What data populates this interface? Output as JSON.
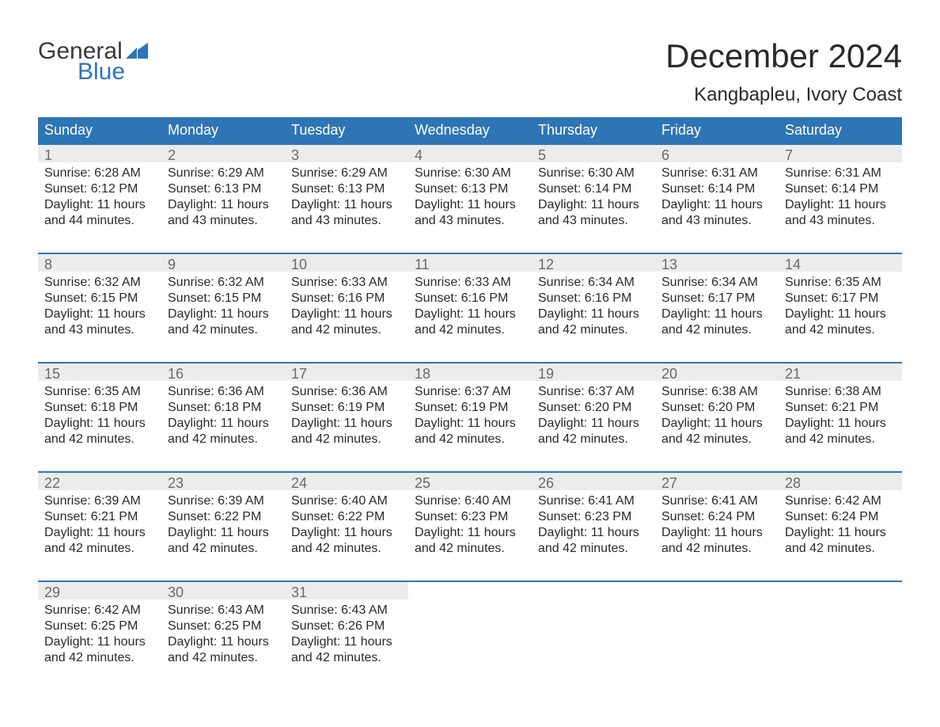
{
  "logo": {
    "general": "General",
    "blue": "Blue",
    "icon_color": "#2e75b6"
  },
  "header": {
    "title": "December 2024",
    "location": "Kangbapleu, Ivory Coast"
  },
  "weekdays": [
    "Sunday",
    "Monday",
    "Tuesday",
    "Wednesday",
    "Thursday",
    "Friday",
    "Saturday"
  ],
  "styling": {
    "header_bg": "#2e75b6",
    "header_fg": "#ffffff",
    "row_separator": "#2e75b6",
    "daynum_bg": "#ececec",
    "daynum_fg": "#6a6a6a",
    "body_fg": "#2a2a2a",
    "page_bg": "#ffffff",
    "title_fontsize": 42,
    "location_fontsize": 24,
    "weekday_fontsize": 18,
    "body_fontsize": 16
  },
  "weeks": [
    [
      {
        "num": "1",
        "sunrise": "Sunrise: 6:28 AM",
        "sunset": "Sunset: 6:12 PM",
        "daylight": "Daylight: 11 hours and 44 minutes."
      },
      {
        "num": "2",
        "sunrise": "Sunrise: 6:29 AM",
        "sunset": "Sunset: 6:13 PM",
        "daylight": "Daylight: 11 hours and 43 minutes."
      },
      {
        "num": "3",
        "sunrise": "Sunrise: 6:29 AM",
        "sunset": "Sunset: 6:13 PM",
        "daylight": "Daylight: 11 hours and 43 minutes."
      },
      {
        "num": "4",
        "sunrise": "Sunrise: 6:30 AM",
        "sunset": "Sunset: 6:13 PM",
        "daylight": "Daylight: 11 hours and 43 minutes."
      },
      {
        "num": "5",
        "sunrise": "Sunrise: 6:30 AM",
        "sunset": "Sunset: 6:14 PM",
        "daylight": "Daylight: 11 hours and 43 minutes."
      },
      {
        "num": "6",
        "sunrise": "Sunrise: 6:31 AM",
        "sunset": "Sunset: 6:14 PM",
        "daylight": "Daylight: 11 hours and 43 minutes."
      },
      {
        "num": "7",
        "sunrise": "Sunrise: 6:31 AM",
        "sunset": "Sunset: 6:14 PM",
        "daylight": "Daylight: 11 hours and 43 minutes."
      }
    ],
    [
      {
        "num": "8",
        "sunrise": "Sunrise: 6:32 AM",
        "sunset": "Sunset: 6:15 PM",
        "daylight": "Daylight: 11 hours and 43 minutes."
      },
      {
        "num": "9",
        "sunrise": "Sunrise: 6:32 AM",
        "sunset": "Sunset: 6:15 PM",
        "daylight": "Daylight: 11 hours and 42 minutes."
      },
      {
        "num": "10",
        "sunrise": "Sunrise: 6:33 AM",
        "sunset": "Sunset: 6:16 PM",
        "daylight": "Daylight: 11 hours and 42 minutes."
      },
      {
        "num": "11",
        "sunrise": "Sunrise: 6:33 AM",
        "sunset": "Sunset: 6:16 PM",
        "daylight": "Daylight: 11 hours and 42 minutes."
      },
      {
        "num": "12",
        "sunrise": "Sunrise: 6:34 AM",
        "sunset": "Sunset: 6:16 PM",
        "daylight": "Daylight: 11 hours and 42 minutes."
      },
      {
        "num": "13",
        "sunrise": "Sunrise: 6:34 AM",
        "sunset": "Sunset: 6:17 PM",
        "daylight": "Daylight: 11 hours and 42 minutes."
      },
      {
        "num": "14",
        "sunrise": "Sunrise: 6:35 AM",
        "sunset": "Sunset: 6:17 PM",
        "daylight": "Daylight: 11 hours and 42 minutes."
      }
    ],
    [
      {
        "num": "15",
        "sunrise": "Sunrise: 6:35 AM",
        "sunset": "Sunset: 6:18 PM",
        "daylight": "Daylight: 11 hours and 42 minutes."
      },
      {
        "num": "16",
        "sunrise": "Sunrise: 6:36 AM",
        "sunset": "Sunset: 6:18 PM",
        "daylight": "Daylight: 11 hours and 42 minutes."
      },
      {
        "num": "17",
        "sunrise": "Sunrise: 6:36 AM",
        "sunset": "Sunset: 6:19 PM",
        "daylight": "Daylight: 11 hours and 42 minutes."
      },
      {
        "num": "18",
        "sunrise": "Sunrise: 6:37 AM",
        "sunset": "Sunset: 6:19 PM",
        "daylight": "Daylight: 11 hours and 42 minutes."
      },
      {
        "num": "19",
        "sunrise": "Sunrise: 6:37 AM",
        "sunset": "Sunset: 6:20 PM",
        "daylight": "Daylight: 11 hours and 42 minutes."
      },
      {
        "num": "20",
        "sunrise": "Sunrise: 6:38 AM",
        "sunset": "Sunset: 6:20 PM",
        "daylight": "Daylight: 11 hours and 42 minutes."
      },
      {
        "num": "21",
        "sunrise": "Sunrise: 6:38 AM",
        "sunset": "Sunset: 6:21 PM",
        "daylight": "Daylight: 11 hours and 42 minutes."
      }
    ],
    [
      {
        "num": "22",
        "sunrise": "Sunrise: 6:39 AM",
        "sunset": "Sunset: 6:21 PM",
        "daylight": "Daylight: 11 hours and 42 minutes."
      },
      {
        "num": "23",
        "sunrise": "Sunrise: 6:39 AM",
        "sunset": "Sunset: 6:22 PM",
        "daylight": "Daylight: 11 hours and 42 minutes."
      },
      {
        "num": "24",
        "sunrise": "Sunrise: 6:40 AM",
        "sunset": "Sunset: 6:22 PM",
        "daylight": "Daylight: 11 hours and 42 minutes."
      },
      {
        "num": "25",
        "sunrise": "Sunrise: 6:40 AM",
        "sunset": "Sunset: 6:23 PM",
        "daylight": "Daylight: 11 hours and 42 minutes."
      },
      {
        "num": "26",
        "sunrise": "Sunrise: 6:41 AM",
        "sunset": "Sunset: 6:23 PM",
        "daylight": "Daylight: 11 hours and 42 minutes."
      },
      {
        "num": "27",
        "sunrise": "Sunrise: 6:41 AM",
        "sunset": "Sunset: 6:24 PM",
        "daylight": "Daylight: 11 hours and 42 minutes."
      },
      {
        "num": "28",
        "sunrise": "Sunrise: 6:42 AM",
        "sunset": "Sunset: 6:24 PM",
        "daylight": "Daylight: 11 hours and 42 minutes."
      }
    ],
    [
      {
        "num": "29",
        "sunrise": "Sunrise: 6:42 AM",
        "sunset": "Sunset: 6:25 PM",
        "daylight": "Daylight: 11 hours and 42 minutes."
      },
      {
        "num": "30",
        "sunrise": "Sunrise: 6:43 AM",
        "sunset": "Sunset: 6:25 PM",
        "daylight": "Daylight: 11 hours and 42 minutes."
      },
      {
        "num": "31",
        "sunrise": "Sunrise: 6:43 AM",
        "sunset": "Sunset: 6:26 PM",
        "daylight": "Daylight: 11 hours and 42 minutes."
      },
      {
        "empty": true
      },
      {
        "empty": true
      },
      {
        "empty": true
      },
      {
        "empty": true
      }
    ]
  ]
}
